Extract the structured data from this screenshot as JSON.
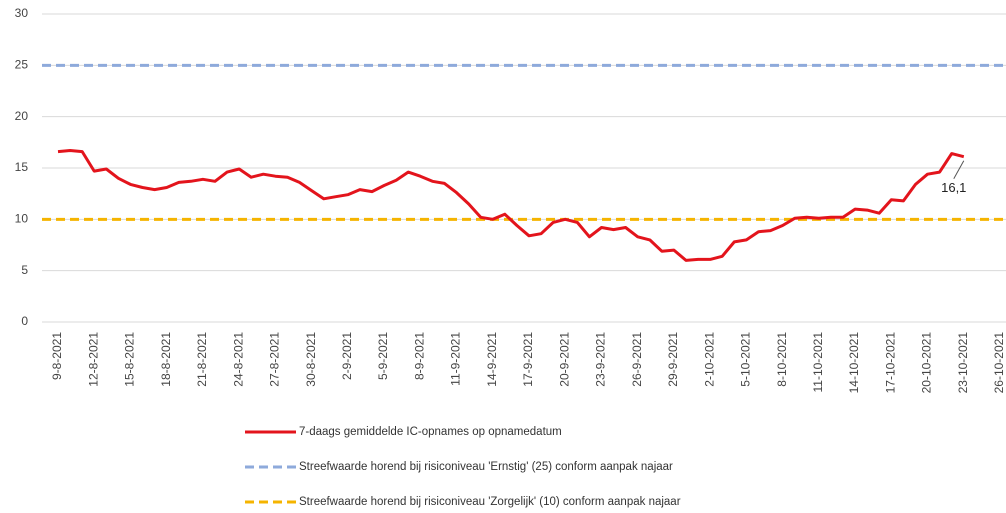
{
  "chart_data": {
    "type": "line",
    "categories": [
      "9-8-2021",
      null,
      null,
      "12-8-2021",
      null,
      null,
      "15-8-2021",
      null,
      null,
      "18-8-2021",
      null,
      null,
      "21-8-2021",
      null,
      null,
      "24-8-2021",
      null,
      null,
      "27-8-2021",
      null,
      null,
      "30-8-2021",
      null,
      null,
      "2-9-2021",
      null,
      null,
      "5-9-2021",
      null,
      null,
      "8-9-2021",
      null,
      null,
      "11-9-2021",
      null,
      null,
      "14-9-2021",
      null,
      null,
      "17-9-2021",
      null,
      null,
      "20-9-2021",
      null,
      null,
      "23-9-2021",
      null,
      null,
      "26-9-2021",
      null,
      null,
      "29-9-2021",
      null,
      null,
      "2-10-2021",
      null,
      null,
      "5-10-2021",
      null,
      null,
      "8-10-2021",
      null,
      null,
      "11-10-2021",
      null,
      null,
      "14-10-2021",
      null,
      null,
      "17-10-2021",
      null,
      null,
      "20-10-2021",
      null,
      null,
      "23-10-2021",
      null,
      null,
      "26-10-2021"
    ],
    "series": [
      {
        "name": "7-daags gemiddelde IC-opnames op opnamedatum",
        "color": "#e3141c",
        "values": [
          16.6,
          16.7,
          16.6,
          14.7,
          14.9,
          14.0,
          13.4,
          13.1,
          12.9,
          13.1,
          13.6,
          13.7,
          13.9,
          13.7,
          14.6,
          14.9,
          14.1,
          14.4,
          14.2,
          14.1,
          13.6,
          12.8,
          12.0,
          12.2,
          12.4,
          12.9,
          12.7,
          13.3,
          13.8,
          14.6,
          14.2,
          13.7,
          13.5,
          12.6,
          11.5,
          10.2,
          10.0,
          10.5,
          9.4,
          8.4,
          8.6,
          9.7,
          10.0,
          9.7,
          8.3,
          9.2,
          9.0,
          9.2,
          8.3,
          8.0,
          6.9,
          7.0,
          6.0,
          6.1,
          6.1,
          6.4,
          7.8,
          8.0,
          8.8,
          8.9,
          9.4,
          10.1,
          10.2,
          10.1,
          10.2,
          10.2,
          11.0,
          10.9,
          10.6,
          11.9,
          11.8,
          13.4,
          14.4,
          14.6,
          16.4,
          16.1,
          null,
          null,
          null
        ],
        "value_labels": [
          null,
          null,
          null,
          null,
          null,
          null,
          null,
          null,
          null,
          null,
          null,
          null,
          null,
          null,
          null,
          null,
          null,
          null,
          null,
          null,
          null,
          null,
          null,
          null,
          null,
          null,
          null,
          null,
          null,
          null,
          null,
          null,
          null,
          null,
          null,
          null,
          null,
          null,
          null,
          null,
          null,
          null,
          null,
          null,
          null,
          null,
          null,
          null,
          null,
          null,
          null,
          null,
          null,
          null,
          null,
          null,
          null,
          null,
          null,
          null,
          null,
          null,
          null,
          null,
          null,
          null,
          null,
          null,
          null,
          null,
          null,
          null,
          null,
          null,
          null,
          "16,1",
          null,
          null,
          null
        ]
      }
    ],
    "hlines": [
      {
        "name": "Streefwaarde horend bij risiconiveau 'Ernstig' (25) conform aanpak najaar",
        "color": "#8eaadb",
        "value": 25
      },
      {
        "name": "Streefwaarde horend bij risiconiveau 'Zorgelijk' (10) conform aanpak najaar",
        "color": "#f5b400",
        "value": 10
      }
    ],
    "ylim": [
      0,
      30
    ],
    "yticks": [
      0,
      5,
      10,
      15,
      20,
      25,
      30
    ],
    "grid": true
  }
}
